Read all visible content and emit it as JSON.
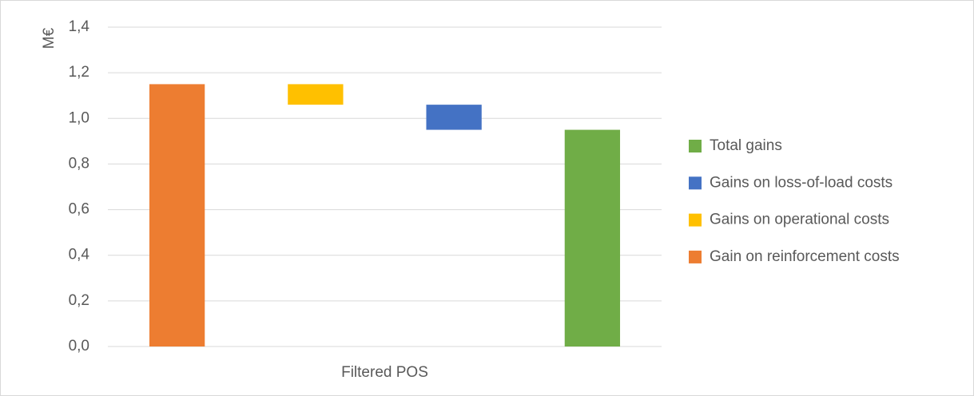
{
  "chart_data": {
    "type": "waterfall",
    "y_label": "M€",
    "categories": [
      "Filtered POS"
    ],
    "series": [
      {
        "name": "Gain on reinforcement costs",
        "color": "#ED7D31",
        "values": [
          1.15
        ]
      },
      {
        "name": "Gains on operational costs",
        "color": "#FFC000",
        "values": [
          -0.09
        ]
      },
      {
        "name": "Gains on loss-of-load costs",
        "color": "#4472C4",
        "values": [
          -0.11
        ]
      },
      {
        "name": "Total gains",
        "color": "#70AD47",
        "values": [
          0.95
        ]
      }
    ],
    "ylim": [
      0,
      1.4
    ],
    "yticks": [
      {
        "value": 0,
        "label": "0,0"
      },
      {
        "value": 0.2,
        "label": "0,2"
      },
      {
        "value": 0.4,
        "label": "0,4"
      },
      {
        "value": 0.6,
        "label": "0,6"
      },
      {
        "value": 0.8,
        "label": "0,8"
      },
      {
        "value": 1.0,
        "label": "1,0"
      },
      {
        "value": 1.2,
        "label": "1,2"
      },
      {
        "value": 1.4,
        "label": "1,4"
      }
    ],
    "grid": true,
    "legend": "right"
  }
}
